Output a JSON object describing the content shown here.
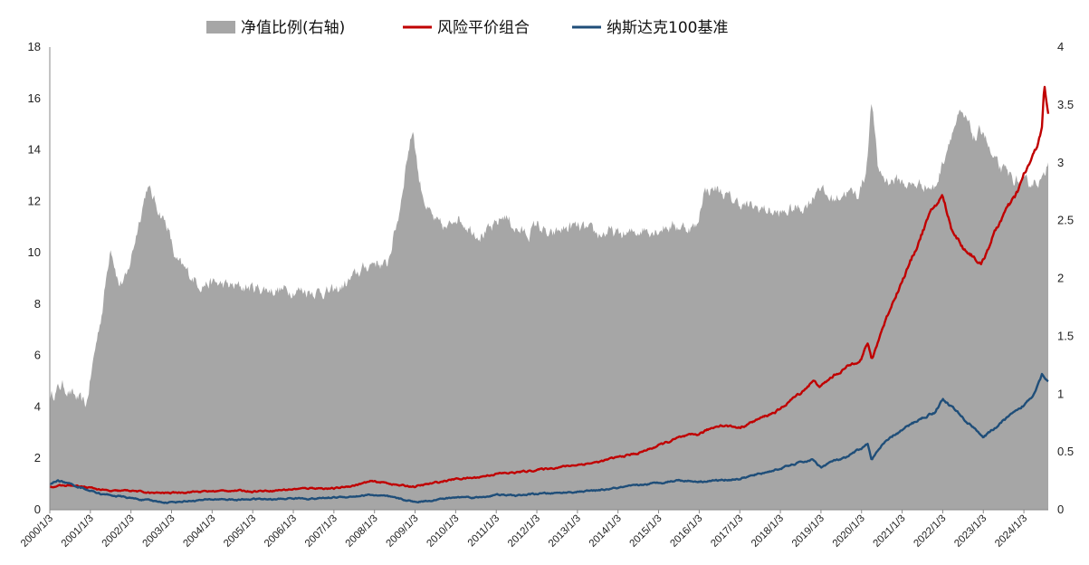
{
  "chart_data": {
    "type": "line",
    "legend": [
      {
        "key": "ratio",
        "label": "净值比例(右轴)",
        "color": "#a6a6a6",
        "kind": "area"
      },
      {
        "key": "risk_parity",
        "label": "风险平价组合",
        "color": "#c00000",
        "kind": "line"
      },
      {
        "key": "nasdaq",
        "label": "纳斯达克100基准",
        "color": "#1f4e79",
        "kind": "line"
      }
    ],
    "legend_position": "top",
    "x_ticks": [
      "2000/1/3",
      "2001/1/3",
      "2002/1/3",
      "2003/1/3",
      "2004/1/3",
      "2005/1/3",
      "2006/1/3",
      "2007/1/3",
      "2008/1/3",
      "2009/1/3",
      "2010/1/3",
      "2011/1/3",
      "2012/1/3",
      "2013/1/3",
      "2014/1/3",
      "2015/1/3",
      "2016/1/3",
      "2017/1/3",
      "2018/1/3",
      "2019/1/3",
      "2020/1/3",
      "2021/1/3",
      "2022/1/3",
      "2023/1/3",
      "2024/1/3"
    ],
    "y_left": {
      "min": 0,
      "max": 18,
      "ticks": [
        "0",
        "2",
        "4",
        "6",
        "8",
        "10",
        "12",
        "14",
        "16",
        "18"
      ]
    },
    "y_right": {
      "min": 0,
      "max": 4,
      "ticks": [
        "0",
        "0.5",
        "1",
        "1.5",
        "2",
        "2.5",
        "3",
        "3.5",
        "4"
      ]
    },
    "grid": false,
    "x_start": 2000.0,
    "x_end": 2024.6,
    "series": [
      {
        "key": "ratio",
        "axis": "right",
        "x": [
          2000.0,
          2000.3,
          2000.6,
          2000.9,
          2001.1,
          2001.3,
          2001.5,
          2001.7,
          2001.9,
          2002.2,
          2002.4,
          2002.6,
          2002.9,
          2003.1,
          2003.4,
          2003.7,
          2004.0,
          2004.5,
          2005.0,
          2005.5,
          2006.0,
          2006.5,
          2007.0,
          2007.3,
          2007.6,
          2008.0,
          2008.3,
          2008.6,
          2008.8,
          2008.95,
          2009.1,
          2009.3,
          2009.5,
          2009.8,
          2010.0,
          2010.3,
          2010.6,
          2010.9,
          2011.2,
          2011.5,
          2011.8,
          2012.0,
          2012.3,
          2012.6,
          2012.9,
          2013.2,
          2013.5,
          2013.8,
          2014.0,
          2014.3,
          2014.6,
          2014.9,
          2015.2,
          2015.5,
          2015.75,
          2015.95,
          2016.1,
          2016.4,
          2016.8,
          2017.2,
          2017.6,
          2018.0,
          2018.3,
          2018.6,
          2018.8,
          2018.95,
          2019.1,
          2019.3,
          2019.6,
          2019.9,
          2020.1,
          2020.25,
          2020.4,
          2020.6,
          2020.9,
          2021.2,
          2021.5,
          2021.8,
          2022.0,
          2022.2,
          2022.4,
          2022.6,
          2022.8,
          2023.0,
          2023.2,
          2023.4,
          2023.6,
          2023.8,
          2024.0,
          2024.3,
          2024.5,
          2024.6
        ],
        "values": [
          0.97,
          1.08,
          0.98,
          0.9,
          1.35,
          1.75,
          2.3,
          1.95,
          2.0,
          2.5,
          2.8,
          2.65,
          2.45,
          2.15,
          2.05,
          1.95,
          1.96,
          1.93,
          1.92,
          1.9,
          1.9,
          1.89,
          1.88,
          1.95,
          2.05,
          2.15,
          2.1,
          2.55,
          3.05,
          3.3,
          2.85,
          2.6,
          2.48,
          2.42,
          2.55,
          2.45,
          2.38,
          2.42,
          2.55,
          2.42,
          2.38,
          2.48,
          2.35,
          2.42,
          2.45,
          2.42,
          2.38,
          2.4,
          2.38,
          2.38,
          2.43,
          2.42,
          2.45,
          2.45,
          2.44,
          2.44,
          2.75,
          2.78,
          2.68,
          2.62,
          2.6,
          2.55,
          2.6,
          2.62,
          2.7,
          2.82,
          2.72,
          2.68,
          2.75,
          2.72,
          2.9,
          3.55,
          2.95,
          2.85,
          2.85,
          2.8,
          2.82,
          2.77,
          3.0,
          3.25,
          3.4,
          3.35,
          3.2,
          3.3,
          3.05,
          2.95,
          2.9,
          2.85,
          2.8,
          2.85,
          2.85,
          3.05
        ]
      },
      {
        "key": "risk_parity",
        "axis": "left",
        "x": [
          2000.0,
          2000.5,
          2001.0,
          2001.5,
          2002.0,
          2002.5,
          2003.0,
          2003.5,
          2004.0,
          2004.5,
          2005.0,
          2005.5,
          2006.0,
          2006.5,
          2007.0,
          2007.5,
          2007.9,
          2008.3,
          2008.6,
          2009.0,
          2009.5,
          2010.0,
          2010.5,
          2011.0,
          2011.5,
          2012.0,
          2012.5,
          2013.0,
          2013.5,
          2014.0,
          2014.5,
          2015.0,
          2015.5,
          2016.0,
          2016.2,
          2016.5,
          2017.0,
          2017.5,
          2018.0,
          2018.2,
          2018.5,
          2018.8,
          2019.0,
          2019.3,
          2019.6,
          2020.0,
          2020.15,
          2020.25,
          2020.5,
          2020.8,
          2021.0,
          2021.3,
          2021.6,
          2021.8,
          2022.0,
          2022.2,
          2022.5,
          2022.8,
          2022.95,
          2023.2,
          2023.5,
          2023.8,
          2024.0,
          2024.3,
          2024.45,
          2024.5,
          2024.6
        ],
        "values": [
          0.9,
          0.95,
          0.85,
          0.72,
          0.75,
          0.65,
          0.66,
          0.7,
          0.72,
          0.75,
          0.72,
          0.75,
          0.8,
          0.85,
          0.82,
          0.95,
          1.1,
          1.05,
          0.95,
          0.9,
          1.05,
          1.2,
          1.25,
          1.4,
          1.45,
          1.55,
          1.65,
          1.75,
          1.85,
          2.05,
          2.2,
          2.5,
          2.8,
          2.95,
          3.1,
          3.3,
          3.2,
          3.55,
          3.9,
          4.2,
          4.55,
          5.0,
          4.8,
          5.2,
          5.5,
          5.9,
          6.5,
          5.8,
          7.0,
          8.2,
          8.9,
          10.0,
          11.2,
          11.8,
          12.2,
          11.0,
          10.2,
          9.8,
          9.5,
          10.5,
          11.5,
          12.2,
          13.0,
          14.0,
          15.0,
          16.5,
          15.3
        ]
      },
      {
        "key": "nasdaq",
        "axis": "left",
        "x": [
          2000.0,
          2000.2,
          2000.5,
          2000.8,
          2001.0,
          2001.3,
          2001.6,
          2002.0,
          2002.5,
          2002.9,
          2003.3,
          2003.8,
          2004.2,
          2004.6,
          2005.0,
          2005.5,
          2006.0,
          2006.5,
          2007.0,
          2007.5,
          2007.9,
          2008.3,
          2008.7,
          2009.0,
          2009.3,
          2009.8,
          2010.2,
          2010.6,
          2011.0,
          2011.5,
          2012.0,
          2012.5,
          2013.0,
          2013.5,
          2014.0,
          2014.5,
          2015.0,
          2015.5,
          2016.0,
          2016.5,
          2017.0,
          2017.5,
          2018.0,
          2018.4,
          2018.8,
          2019.0,
          2019.3,
          2019.6,
          2020.0,
          2020.15,
          2020.25,
          2020.5,
          2020.8,
          2021.0,
          2021.4,
          2021.8,
          2022.0,
          2022.3,
          2022.6,
          2022.85,
          2023.0,
          2023.3,
          2023.6,
          2023.9,
          2024.2,
          2024.45,
          2024.6
        ],
        "values": [
          1.0,
          1.15,
          1.0,
          0.85,
          0.75,
          0.6,
          0.55,
          0.45,
          0.35,
          0.28,
          0.33,
          0.38,
          0.42,
          0.38,
          0.42,
          0.4,
          0.45,
          0.43,
          0.48,
          0.52,
          0.58,
          0.52,
          0.4,
          0.3,
          0.35,
          0.45,
          0.5,
          0.48,
          0.58,
          0.55,
          0.62,
          0.65,
          0.7,
          0.75,
          0.85,
          0.95,
          1.05,
          1.15,
          1.1,
          1.15,
          1.2,
          1.4,
          1.6,
          1.8,
          1.95,
          1.65,
          1.9,
          2.0,
          2.4,
          2.55,
          1.95,
          2.5,
          2.9,
          3.1,
          3.5,
          3.8,
          4.3,
          3.9,
          3.4,
          3.1,
          2.8,
          3.2,
          3.6,
          3.9,
          4.4,
          5.3,
          5.0
        ]
      }
    ]
  }
}
